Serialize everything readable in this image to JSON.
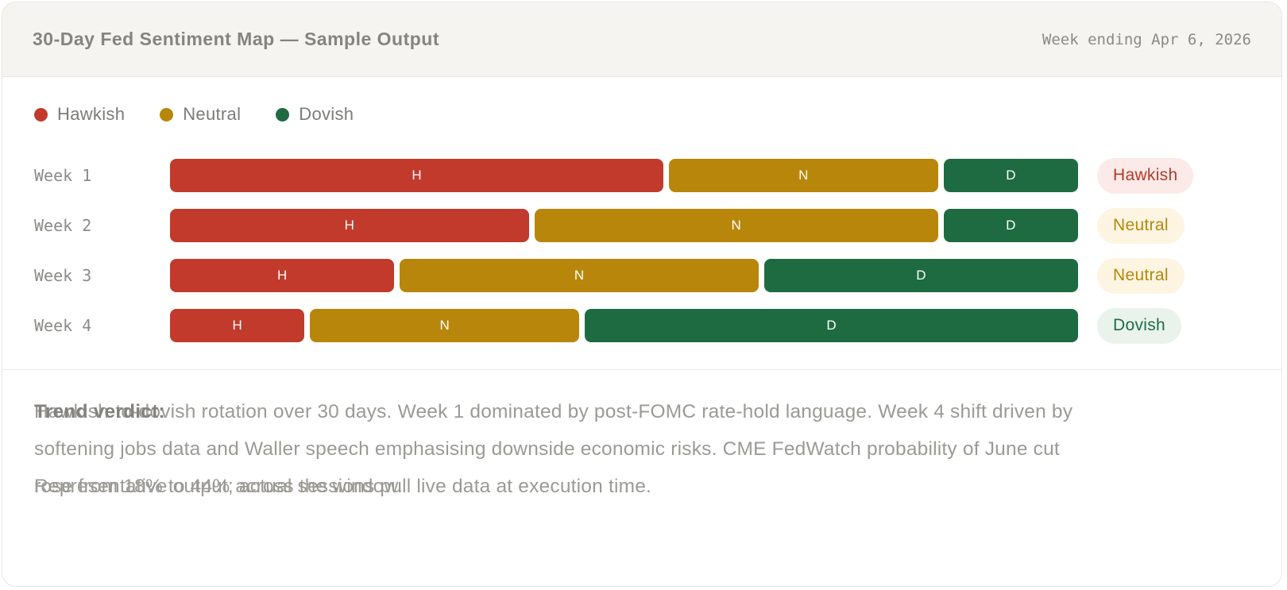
{
  "header": {
    "title": "30-Day Fed Sentiment Map — Sample Output",
    "date": "Week ending Apr 6, 2026"
  },
  "colors": {
    "hawkish": "#c23a2b",
    "neutral": "#b8860b",
    "dovish": "#1e6b42",
    "badge_hawkish_bg": "#fbeae7",
    "badge_hawkish_text": "#b43a2d",
    "badge_neutral_bg": "#fdf5e1",
    "badge_neutral_text": "#b5870b",
    "badge_dovish_bg": "#e9f3ec",
    "badge_dovish_text": "#206b42"
  },
  "legend": {
    "items": [
      {
        "label": "Hawkish",
        "color": "#c23a2b"
      },
      {
        "label": "Neutral",
        "color": "#b8860b"
      },
      {
        "label": "Dovish",
        "color": "#1e6b42"
      }
    ]
  },
  "rows": [
    {
      "label": "Week 1",
      "segments": [
        {
          "name": "Hawkish",
          "letter": "H",
          "value": 55,
          "color": "#c23a2b"
        },
        {
          "name": "Neutral",
          "letter": "N",
          "value": 30,
          "color": "#b8860b"
        },
        {
          "name": "Dovish",
          "letter": "D",
          "value": 15,
          "color": "#1e6b42"
        }
      ],
      "verdict": {
        "label": "Hawkish",
        "bg": "#fbeae7",
        "color": "#b43a2d"
      }
    },
    {
      "label": "Week 2",
      "segments": [
        {
          "name": "Hawkish",
          "letter": "H",
          "value": 40,
          "color": "#c23a2b"
        },
        {
          "name": "Neutral",
          "letter": "N",
          "value": 45,
          "color": "#b8860b"
        },
        {
          "name": "Dovish",
          "letter": "D",
          "value": 15,
          "color": "#1e6b42"
        }
      ],
      "verdict": {
        "label": "Neutral",
        "bg": "#fdf5e1",
        "color": "#b5870b"
      }
    },
    {
      "label": "Week 3",
      "segments": [
        {
          "name": "Hawkish",
          "letter": "H",
          "value": 25,
          "color": "#c23a2b"
        },
        {
          "name": "Neutral",
          "letter": "N",
          "value": 40,
          "color": "#b8860b"
        },
        {
          "name": "Dovish",
          "letter": "D",
          "value": 35,
          "color": "#1e6b42"
        }
      ],
      "verdict": {
        "label": "Neutral",
        "bg": "#fdf5e1",
        "color": "#b5870b"
      }
    },
    {
      "label": "Week 4",
      "segments": [
        {
          "name": "Hawkish",
          "letter": "H",
          "value": 15,
          "color": "#c23a2b"
        },
        {
          "name": "Neutral",
          "letter": "N",
          "value": 30,
          "color": "#b8860b"
        },
        {
          "name": "Dovish",
          "letter": "D",
          "value": 55,
          "color": "#1e6b42"
        }
      ],
      "verdict": {
        "label": "Dovish",
        "bg": "#e9f3ec",
        "color": "#206b42"
      }
    }
  ],
  "notes": {
    "trend_label": "Trend verdict:",
    "paragraph_lines": [
      "Hawkish-to-dovish rotation over 30 days. Week 1 dominated by post-FOMC rate-hold language. Week 4 shift driven by",
      "softening jobs data and Waller speech emphasising downside economic risks. CME FedWatch probability of June cut",
      "rose from 18% to 44% across the window."
    ],
    "footnote": "Representative output; actual sessions pull live data at execution time."
  },
  "chart_data": {
    "type": "bar",
    "variant": "horizontal-stacked",
    "title": "30-Day Fed Sentiment Map — Sample Output",
    "categories": [
      "Week 1",
      "Week 2",
      "Week 3",
      "Week 4"
    ],
    "series": [
      {
        "name": "Hawkish",
        "color": "#c23a2b",
        "values": [
          55,
          40,
          25,
          15
        ]
      },
      {
        "name": "Neutral",
        "color": "#b8860b",
        "values": [
          30,
          45,
          40,
          30
        ]
      },
      {
        "name": "Dovish",
        "color": "#1e6b42",
        "values": [
          15,
          15,
          35,
          55
        ]
      }
    ],
    "row_verdicts": [
      "Hawkish",
      "Neutral",
      "Neutral",
      "Dovish"
    ],
    "xlim": [
      0,
      100
    ],
    "legend_position": "top-left",
    "grid": false,
    "segment_labels": [
      "H",
      "N",
      "D"
    ]
  }
}
